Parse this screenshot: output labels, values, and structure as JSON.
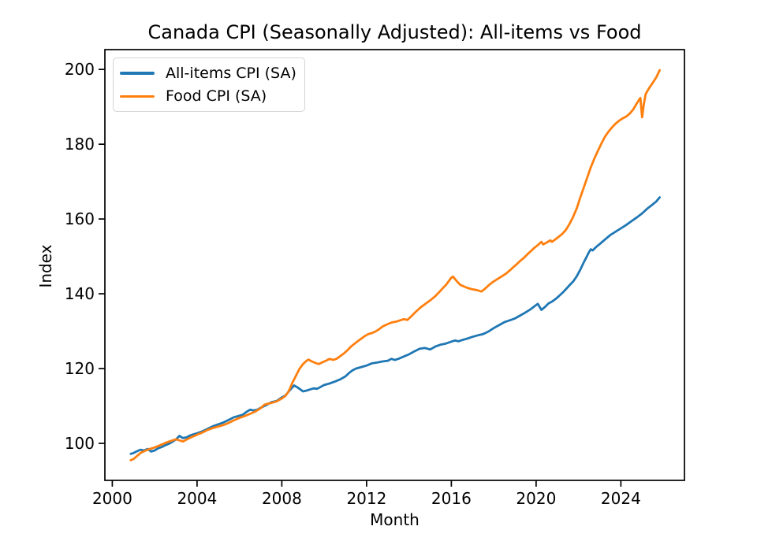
{
  "chart_data": {
    "type": "line",
    "title": "Canada CPI (Seasonally Adjusted): All-items vs Food",
    "xlabel": "Month",
    "ylabel": "Index",
    "xlim": [
      1999.65,
      2027.0
    ],
    "ylim": [
      90.1,
      205.3
    ],
    "xticks": [
      2000,
      2004,
      2008,
      2012,
      2016,
      2020,
      2024
    ],
    "yticks": [
      100,
      120,
      140,
      160,
      180,
      200
    ],
    "grid": false,
    "legend_position": "upper left",
    "x_unit": "year",
    "series": [
      {
        "name": "All-items CPI (SA)",
        "color": "#1f77b4",
        "points": [
          [
            2000.87,
            97.2
          ],
          [
            2001.0,
            97.4
          ],
          [
            2001.17,
            97.9
          ],
          [
            2001.33,
            98.3
          ],
          [
            2001.5,
            98.1
          ],
          [
            2001.67,
            98.5
          ],
          [
            2001.83,
            97.8
          ],
          [
            2002.0,
            98.1
          ],
          [
            2002.17,
            98.7
          ],
          [
            2002.33,
            99.0
          ],
          [
            2002.5,
            99.5
          ],
          [
            2002.67,
            99.9
          ],
          [
            2002.83,
            100.4
          ],
          [
            2003.0,
            101.0
          ],
          [
            2003.17,
            102.0
          ],
          [
            2003.33,
            101.4
          ],
          [
            2003.5,
            101.6
          ],
          [
            2003.67,
            102.1
          ],
          [
            2003.83,
            102.4
          ],
          [
            2004.0,
            102.7
          ],
          [
            2004.25,
            103.2
          ],
          [
            2004.5,
            103.9
          ],
          [
            2004.75,
            104.6
          ],
          [
            2005.0,
            105.1
          ],
          [
            2005.25,
            105.6
          ],
          [
            2005.5,
            106.3
          ],
          [
            2005.75,
            107.0
          ],
          [
            2006.0,
            107.4
          ],
          [
            2006.17,
            107.7
          ],
          [
            2006.33,
            108.4
          ],
          [
            2006.5,
            109.0
          ],
          [
            2006.67,
            108.8
          ],
          [
            2006.83,
            109.0
          ],
          [
            2007.0,
            109.5
          ],
          [
            2007.25,
            110.2
          ],
          [
            2007.5,
            111.0
          ],
          [
            2007.75,
            111.3
          ],
          [
            2008.0,
            112.3
          ],
          [
            2008.17,
            112.8
          ],
          [
            2008.33,
            113.9
          ],
          [
            2008.5,
            115.0
          ],
          [
            2008.58,
            115.5
          ],
          [
            2008.75,
            114.9
          ],
          [
            2009.0,
            113.9
          ],
          [
            2009.17,
            114.1
          ],
          [
            2009.33,
            114.4
          ],
          [
            2009.5,
            114.7
          ],
          [
            2009.67,
            114.6
          ],
          [
            2009.83,
            115.1
          ],
          [
            2010.0,
            115.6
          ],
          [
            2010.25,
            116.0
          ],
          [
            2010.5,
            116.5
          ],
          [
            2010.75,
            117.1
          ],
          [
            2011.0,
            117.9
          ],
          [
            2011.17,
            118.8
          ],
          [
            2011.33,
            119.5
          ],
          [
            2011.5,
            120.0
          ],
          [
            2011.75,
            120.4
          ],
          [
            2012.0,
            120.8
          ],
          [
            2012.25,
            121.4
          ],
          [
            2012.5,
            121.6
          ],
          [
            2012.75,
            121.9
          ],
          [
            2013.0,
            122.1
          ],
          [
            2013.17,
            122.6
          ],
          [
            2013.33,
            122.3
          ],
          [
            2013.5,
            122.6
          ],
          [
            2013.75,
            123.2
          ],
          [
            2014.0,
            123.8
          ],
          [
            2014.25,
            124.6
          ],
          [
            2014.5,
            125.3
          ],
          [
            2014.75,
            125.5
          ],
          [
            2015.0,
            125.1
          ],
          [
            2015.25,
            125.9
          ],
          [
            2015.5,
            126.4
          ],
          [
            2015.75,
            126.7
          ],
          [
            2016.0,
            127.2
          ],
          [
            2016.17,
            127.5
          ],
          [
            2016.33,
            127.3
          ],
          [
            2016.5,
            127.6
          ],
          [
            2016.75,
            128.0
          ],
          [
            2017.0,
            128.5
          ],
          [
            2017.25,
            128.9
          ],
          [
            2017.5,
            129.2
          ],
          [
            2017.75,
            129.9
          ],
          [
            2018.0,
            130.8
          ],
          [
            2018.25,
            131.6
          ],
          [
            2018.5,
            132.4
          ],
          [
            2018.75,
            132.9
          ],
          [
            2019.0,
            133.4
          ],
          [
            2019.25,
            134.2
          ],
          [
            2019.5,
            135.0
          ],
          [
            2019.75,
            135.9
          ],
          [
            2020.0,
            137.0
          ],
          [
            2020.08,
            137.3
          ],
          [
            2020.25,
            135.7
          ],
          [
            2020.42,
            136.5
          ],
          [
            2020.58,
            137.4
          ],
          [
            2020.75,
            137.9
          ],
          [
            2020.92,
            138.6
          ],
          [
            2021.08,
            139.4
          ],
          [
            2021.25,
            140.3
          ],
          [
            2021.42,
            141.3
          ],
          [
            2021.58,
            142.3
          ],
          [
            2021.75,
            143.3
          ],
          [
            2021.92,
            144.7
          ],
          [
            2022.08,
            146.4
          ],
          [
            2022.25,
            148.4
          ],
          [
            2022.42,
            150.3
          ],
          [
            2022.5,
            151.2
          ],
          [
            2022.58,
            151.9
          ],
          [
            2022.67,
            151.6
          ],
          [
            2022.83,
            152.5
          ],
          [
            2023.0,
            153.3
          ],
          [
            2023.25,
            154.5
          ],
          [
            2023.5,
            155.7
          ],
          [
            2023.75,
            156.6
          ],
          [
            2024.0,
            157.5
          ],
          [
            2024.25,
            158.4
          ],
          [
            2024.5,
            159.4
          ],
          [
            2024.75,
            160.4
          ],
          [
            2025.0,
            161.5
          ],
          [
            2025.25,
            162.8
          ],
          [
            2025.5,
            163.9
          ],
          [
            2025.67,
            164.7
          ],
          [
            2025.83,
            165.8
          ]
        ]
      },
      {
        "name": "Food CPI (SA)",
        "color": "#ff7f0e",
        "points": [
          [
            2000.87,
            95.5
          ],
          [
            2001.0,
            95.8
          ],
          [
            2001.17,
            96.6
          ],
          [
            2001.33,
            97.4
          ],
          [
            2001.5,
            97.9
          ],
          [
            2001.67,
            98.3
          ],
          [
            2001.83,
            98.6
          ],
          [
            2002.0,
            98.9
          ],
          [
            2002.25,
            99.5
          ],
          [
            2002.5,
            100.1
          ],
          [
            2002.75,
            100.6
          ],
          [
            2003.0,
            101.1
          ],
          [
            2003.17,
            100.8
          ],
          [
            2003.33,
            100.5
          ],
          [
            2003.5,
            101.0
          ],
          [
            2003.75,
            101.7
          ],
          [
            2004.0,
            102.3
          ],
          [
            2004.25,
            102.9
          ],
          [
            2004.5,
            103.6
          ],
          [
            2004.75,
            104.1
          ],
          [
            2005.0,
            104.5
          ],
          [
            2005.25,
            104.9
          ],
          [
            2005.5,
            105.5
          ],
          [
            2005.75,
            106.2
          ],
          [
            2006.0,
            106.8
          ],
          [
            2006.25,
            107.3
          ],
          [
            2006.5,
            107.9
          ],
          [
            2006.75,
            108.5
          ],
          [
            2007.0,
            109.4
          ],
          [
            2007.17,
            110.3
          ],
          [
            2007.33,
            110.6
          ],
          [
            2007.5,
            110.8
          ],
          [
            2007.75,
            111.2
          ],
          [
            2008.0,
            112.0
          ],
          [
            2008.17,
            112.7
          ],
          [
            2008.33,
            114.0
          ],
          [
            2008.5,
            116.2
          ],
          [
            2008.67,
            118.1
          ],
          [
            2008.83,
            119.9
          ],
          [
            2009.0,
            121.2
          ],
          [
            2009.17,
            122.1
          ],
          [
            2009.25,
            122.4
          ],
          [
            2009.42,
            121.9
          ],
          [
            2009.58,
            121.5
          ],
          [
            2009.75,
            121.2
          ],
          [
            2009.92,
            121.7
          ],
          [
            2010.08,
            122.1
          ],
          [
            2010.25,
            122.6
          ],
          [
            2010.42,
            122.3
          ],
          [
            2010.58,
            122.6
          ],
          [
            2010.75,
            123.3
          ],
          [
            2010.92,
            124.0
          ],
          [
            2011.08,
            124.8
          ],
          [
            2011.25,
            125.8
          ],
          [
            2011.42,
            126.6
          ],
          [
            2011.58,
            127.3
          ],
          [
            2011.75,
            128.0
          ],
          [
            2011.92,
            128.7
          ],
          [
            2012.08,
            129.2
          ],
          [
            2012.25,
            129.5
          ],
          [
            2012.42,
            129.9
          ],
          [
            2012.58,
            130.5
          ],
          [
            2012.75,
            131.2
          ],
          [
            2012.92,
            131.7
          ],
          [
            2013.08,
            132.1
          ],
          [
            2013.25,
            132.4
          ],
          [
            2013.42,
            132.6
          ],
          [
            2013.58,
            132.9
          ],
          [
            2013.75,
            133.2
          ],
          [
            2013.92,
            133.0
          ],
          [
            2014.08,
            133.8
          ],
          [
            2014.25,
            134.8
          ],
          [
            2014.42,
            135.7
          ],
          [
            2014.58,
            136.5
          ],
          [
            2014.75,
            137.2
          ],
          [
            2014.92,
            137.9
          ],
          [
            2015.08,
            138.6
          ],
          [
            2015.25,
            139.4
          ],
          [
            2015.42,
            140.4
          ],
          [
            2015.58,
            141.4
          ],
          [
            2015.75,
            142.4
          ],
          [
            2015.92,
            143.7
          ],
          [
            2016.0,
            144.3
          ],
          [
            2016.08,
            144.6
          ],
          [
            2016.25,
            143.4
          ],
          [
            2016.42,
            142.4
          ],
          [
            2016.58,
            142.0
          ],
          [
            2016.75,
            141.6
          ],
          [
            2016.92,
            141.3
          ],
          [
            2017.08,
            141.1
          ],
          [
            2017.25,
            140.9
          ],
          [
            2017.42,
            140.6
          ],
          [
            2017.58,
            141.3
          ],
          [
            2017.75,
            142.2
          ],
          [
            2017.92,
            143.0
          ],
          [
            2018.08,
            143.6
          ],
          [
            2018.25,
            144.2
          ],
          [
            2018.42,
            144.8
          ],
          [
            2018.58,
            145.4
          ],
          [
            2018.75,
            146.2
          ],
          [
            2018.92,
            147.1
          ],
          [
            2019.08,
            147.9
          ],
          [
            2019.25,
            148.8
          ],
          [
            2019.42,
            149.6
          ],
          [
            2019.58,
            150.5
          ],
          [
            2019.75,
            151.4
          ],
          [
            2019.92,
            152.3
          ],
          [
            2020.08,
            153.0
          ],
          [
            2020.25,
            153.9
          ],
          [
            2020.33,
            153.2
          ],
          [
            2020.5,
            153.7
          ],
          [
            2020.67,
            154.3
          ],
          [
            2020.75,
            153.9
          ],
          [
            2020.92,
            154.6
          ],
          [
            2021.08,
            155.3
          ],
          [
            2021.25,
            156.1
          ],
          [
            2021.42,
            157.2
          ],
          [
            2021.58,
            158.7
          ],
          [
            2021.75,
            160.6
          ],
          [
            2021.92,
            162.9
          ],
          [
            2022.08,
            165.7
          ],
          [
            2022.25,
            168.4
          ],
          [
            2022.42,
            171.2
          ],
          [
            2022.58,
            173.8
          ],
          [
            2022.75,
            176.2
          ],
          [
            2022.92,
            178.3
          ],
          [
            2023.08,
            180.2
          ],
          [
            2023.25,
            182.0
          ],
          [
            2023.42,
            183.4
          ],
          [
            2023.58,
            184.5
          ],
          [
            2023.75,
            185.5
          ],
          [
            2023.92,
            186.3
          ],
          [
            2024.08,
            186.9
          ],
          [
            2024.25,
            187.4
          ],
          [
            2024.42,
            188.2
          ],
          [
            2024.58,
            189.3
          ],
          [
            2024.75,
            190.9
          ],
          [
            2024.92,
            192.4
          ],
          [
            2025.0,
            187.2
          ],
          [
            2025.08,
            190.6
          ],
          [
            2025.17,
            193.4
          ],
          [
            2025.33,
            195.0
          ],
          [
            2025.5,
            196.4
          ],
          [
            2025.67,
            197.9
          ],
          [
            2025.83,
            199.8
          ]
        ]
      }
    ]
  },
  "style": {
    "spine_color": "#000000",
    "tick_color": "#000000",
    "background": "#ffffff"
  }
}
